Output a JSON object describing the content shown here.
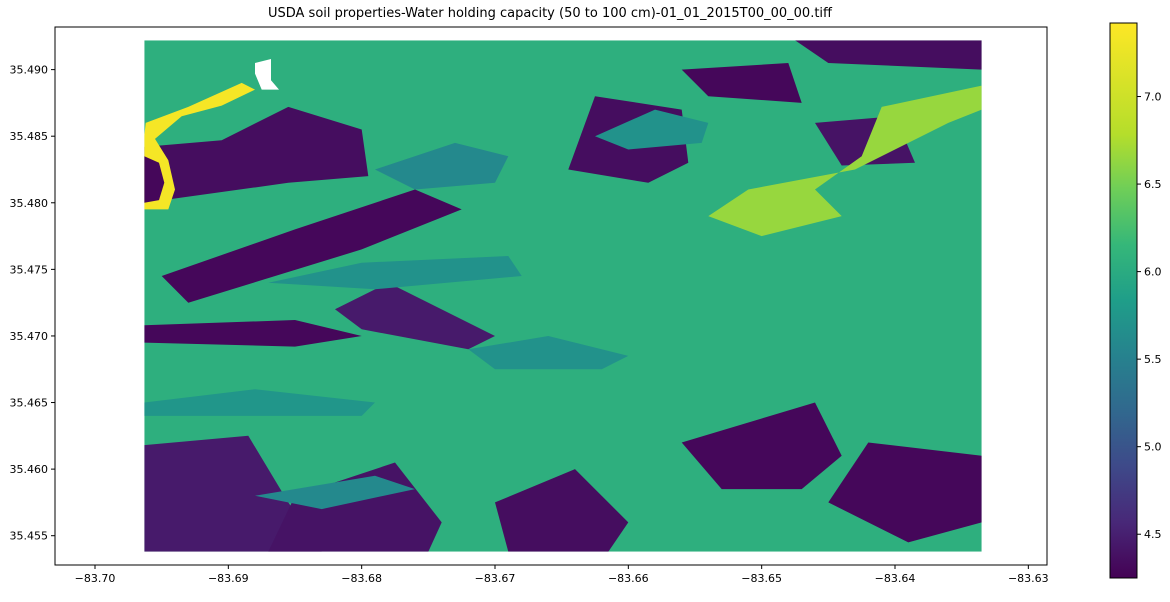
{
  "chart_data": {
    "type": "heatmap",
    "title": "USDA soil properties-Water holding capacity (50 to 100 cm)-01_01_2015T00_00_00.tiff",
    "xlabel": "",
    "ylabel": "",
    "xlim": [
      -83.703,
      -83.6286
    ],
    "ylim": [
      35.4528,
      35.4932
    ],
    "data_extent": {
      "x": [
        -83.6963,
        -83.6335
      ],
      "y": [
        35.4538,
        35.4922
      ]
    },
    "x_ticks": [
      -83.7,
      -83.69,
      -83.68,
      -83.67,
      -83.66,
      -83.65,
      -83.64,
      -83.63
    ],
    "x_tick_labels": [
      "−83.70",
      "−83.69",
      "−83.68",
      "−83.67",
      "−83.66",
      "−83.65",
      "−83.64",
      "−83.63"
    ],
    "y_ticks": [
      35.455,
      35.46,
      35.465,
      35.47,
      35.475,
      35.48,
      35.485,
      35.49
    ],
    "y_tick_labels": [
      "35.455",
      "35.460",
      "35.465",
      "35.470",
      "35.475",
      "35.480",
      "35.485",
      "35.490"
    ],
    "colormap": "viridis",
    "colorbar": {
      "range": [
        4.25,
        7.42
      ],
      "ticks": [
        4.5,
        5.0,
        5.5,
        6.0,
        6.5,
        7.0
      ],
      "tick_labels": [
        "4.5",
        "5.0",
        "5.5",
        "6.0",
        "6.5",
        "7.0"
      ]
    },
    "grid": false,
    "dominant_value": 6.05,
    "regions": [
      {
        "kind": "low",
        "value": 4.35,
        "polygon": [
          [
            -83.6963,
            35.4842
          ],
          [
            -83.6905,
            35.4847
          ],
          [
            -83.6855,
            35.4872
          ],
          [
            -83.68,
            35.4855
          ],
          [
            -83.6795,
            35.482
          ],
          [
            -83.6855,
            35.4815
          ],
          [
            -83.6963,
            35.48
          ]
        ]
      },
      {
        "kind": "low",
        "value": 4.3,
        "polygon": [
          [
            -83.695,
            35.4745
          ],
          [
            -83.685,
            35.478
          ],
          [
            -83.676,
            35.481
          ],
          [
            -83.6725,
            35.4795
          ],
          [
            -83.68,
            35.4765
          ],
          [
            -83.693,
            35.4725
          ]
        ]
      },
      {
        "kind": "low",
        "value": 4.3,
        "polygon": [
          [
            -83.6963,
            35.4708
          ],
          [
            -83.685,
            35.4712
          ],
          [
            -83.68,
            35.47
          ],
          [
            -83.685,
            35.4692
          ],
          [
            -83.6963,
            35.4695
          ]
        ]
      },
      {
        "kind": "low",
        "value": 4.45,
        "polygon": [
          [
            -83.6963,
            35.4618
          ],
          [
            -83.6885,
            35.4625
          ],
          [
            -83.6855,
            35.4575
          ],
          [
            -83.683,
            35.4538
          ],
          [
            -83.6963,
            35.4538
          ]
        ]
      },
      {
        "kind": "low",
        "value": 4.4,
        "polygon": [
          [
            -83.685,
            35.458
          ],
          [
            -83.6775,
            35.4605
          ],
          [
            -83.674,
            35.456
          ],
          [
            -83.675,
            35.4538
          ],
          [
            -83.687,
            35.4538
          ]
        ]
      },
      {
        "kind": "low",
        "value": 4.45,
        "polygon": [
          [
            -83.682,
            35.472
          ],
          [
            -83.678,
            35.474
          ],
          [
            -83.67,
            35.47
          ],
          [
            -83.672,
            35.469
          ],
          [
            -83.68,
            35.4705
          ]
        ]
      },
      {
        "kind": "low",
        "value": 4.35,
        "polygon": [
          [
            -83.6625,
            35.488
          ],
          [
            -83.656,
            35.487
          ],
          [
            -83.6555,
            35.483
          ],
          [
            -83.6585,
            35.4815
          ],
          [
            -83.6645,
            35.4825
          ]
        ]
      },
      {
        "kind": "low",
        "value": 4.3,
        "polygon": [
          [
            -83.656,
            35.49
          ],
          [
            -83.648,
            35.4905
          ],
          [
            -83.647,
            35.4875
          ],
          [
            -83.654,
            35.488
          ]
        ]
      },
      {
        "kind": "low",
        "value": 4.35,
        "polygon": [
          [
            -83.6475,
            35.4922
          ],
          [
            -83.6335,
            35.4922
          ],
          [
            -83.6335,
            35.49
          ],
          [
            -83.645,
            35.4905
          ]
        ]
      },
      {
        "kind": "low",
        "value": 4.4,
        "polygon": [
          [
            -83.646,
            35.486
          ],
          [
            -83.64,
            35.4865
          ],
          [
            -83.6385,
            35.483
          ],
          [
            -83.644,
            35.4828
          ]
        ]
      },
      {
        "kind": "low",
        "value": 4.3,
        "polygon": [
          [
            -83.656,
            35.462
          ],
          [
            -83.646,
            35.465
          ],
          [
            -83.644,
            35.461
          ],
          [
            -83.647,
            35.4585
          ],
          [
            -83.653,
            35.4585
          ]
        ]
      },
      {
        "kind": "low",
        "value": 4.3,
        "polygon": [
          [
            -83.642,
            35.462
          ],
          [
            -83.6335,
            35.461
          ],
          [
            -83.6335,
            35.456
          ],
          [
            -83.639,
            35.4545
          ],
          [
            -83.645,
            35.4575
          ]
        ]
      },
      {
        "kind": "low",
        "value": 4.35,
        "polygon": [
          [
            -83.67,
            35.4575
          ],
          [
            -83.664,
            35.46
          ],
          [
            -83.66,
            35.456
          ],
          [
            -83.6615,
            35.4538
          ],
          [
            -83.669,
            35.4538
          ]
        ]
      },
      {
        "kind": "mid",
        "value": 5.7,
        "polygon": [
          [
            -83.687,
            35.474
          ],
          [
            -83.68,
            35.4755
          ],
          [
            -83.669,
            35.476
          ],
          [
            -83.668,
            35.4745
          ],
          [
            -83.679,
            35.4735
          ]
        ]
      },
      {
        "kind": "mid",
        "value": 5.75,
        "polygon": [
          [
            -83.6963,
            35.465
          ],
          [
            -83.688,
            35.466
          ],
          [
            -83.679,
            35.465
          ],
          [
            -83.68,
            35.464
          ],
          [
            -83.6963,
            35.464
          ]
        ]
      },
      {
        "kind": "mid",
        "value": 5.7,
        "polygon": [
          [
            -83.672,
            35.469
          ],
          [
            -83.666,
            35.47
          ],
          [
            -83.66,
            35.4685
          ],
          [
            -83.662,
            35.4675
          ],
          [
            -83.67,
            35.4675
          ]
        ]
      },
      {
        "kind": "mid",
        "value": 5.6,
        "polygon": [
          [
            -83.679,
            35.4825
          ],
          [
            -83.673,
            35.4845
          ],
          [
            -83.669,
            35.4835
          ],
          [
            -83.67,
            35.4815
          ],
          [
            -83.676,
            35.481
          ]
        ]
      },
      {
        "kind": "mid",
        "value": 5.7,
        "polygon": [
          [
            -83.6625,
            35.485
          ],
          [
            -83.658,
            35.487
          ],
          [
            -83.654,
            35.486
          ],
          [
            -83.6545,
            35.4845
          ],
          [
            -83.66,
            35.484
          ]
        ]
      },
      {
        "kind": "mid",
        "value": 5.6,
        "polygon": [
          [
            -83.688,
            35.458
          ],
          [
            -83.679,
            35.4595
          ],
          [
            -83.676,
            35.4585
          ],
          [
            -83.683,
            35.457
          ]
        ]
      },
      {
        "kind": "high",
        "value": 6.65,
        "polygon": [
          [
            -83.651,
            35.481
          ],
          [
            -83.643,
            35.4825
          ],
          [
            -83.636,
            35.486
          ],
          [
            -83.6335,
            35.487
          ],
          [
            -83.6335,
            35.4888
          ],
          [
            -83.641,
            35.4872
          ],
          [
            -83.6425,
            35.4835
          ],
          [
            -83.646,
            35.481
          ],
          [
            -83.644,
            35.479
          ],
          [
            -83.65,
            35.4775
          ],
          [
            -83.654,
            35.479
          ]
        ]
      },
      {
        "kind": "max",
        "value": 7.35,
        "polygon": [
          [
            -83.6963,
            35.4795
          ],
          [
            -83.6945,
            35.4795
          ],
          [
            -83.694,
            35.481
          ],
          [
            -83.6945,
            35.4832
          ],
          [
            -83.6955,
            35.4848
          ],
          [
            -83.6935,
            35.4865
          ],
          [
            -83.6905,
            35.4873
          ],
          [
            -83.688,
            35.4885
          ],
          [
            -83.689,
            35.489
          ],
          [
            -83.693,
            35.4872
          ],
          [
            -83.6962,
            35.486
          ],
          [
            -83.6963,
            35.485
          ]
        ]
      },
      {
        "kind": "low",
        "value": 4.3,
        "polygon": [
          [
            -83.6963,
            35.48
          ],
          [
            -83.6952,
            35.4802
          ],
          [
            -83.6948,
            35.4815
          ],
          [
            -83.6952,
            35.483
          ],
          [
            -83.6963,
            35.4835
          ]
        ]
      },
      {
        "kind": "nodata",
        "polygon": [
          [
            -83.688,
            35.4905
          ],
          [
            -83.6868,
            35.4908
          ],
          [
            -83.6868,
            35.4892
          ],
          [
            -83.6862,
            35.4885
          ],
          [
            -83.6875,
            35.4885
          ],
          [
            -83.688,
            35.4897
          ]
        ]
      }
    ]
  }
}
